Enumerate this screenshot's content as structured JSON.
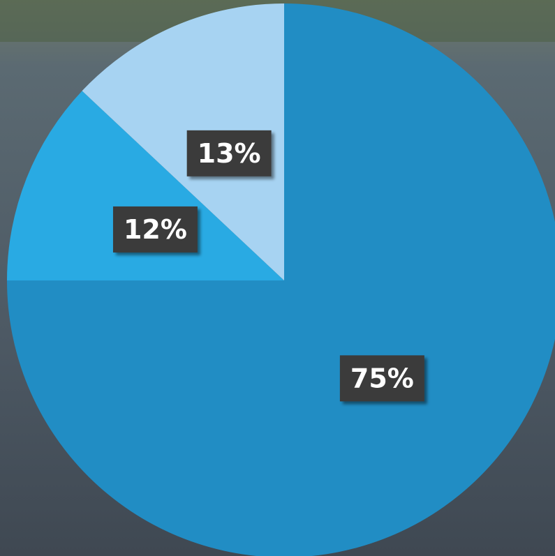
{
  "chart_data": {
    "type": "pie",
    "values": [
      75,
      12,
      13
    ],
    "value_labels": [
      "75%",
      "12%",
      "13%"
    ],
    "colors": [
      "#218dc4",
      "#29aae3",
      "#a7d3f2"
    ]
  }
}
